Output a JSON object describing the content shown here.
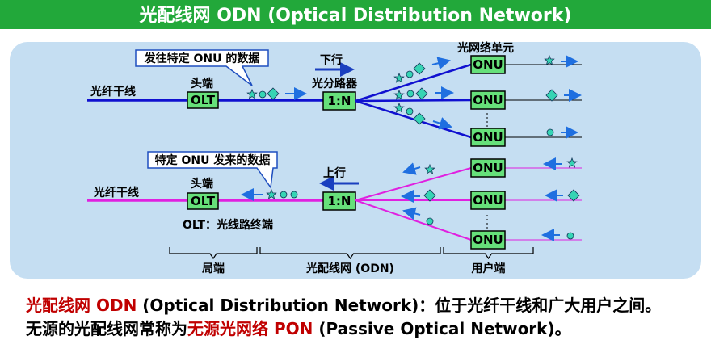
{
  "header": {
    "title": "光配线网 ODN (Optical Distribution Network)"
  },
  "diagram": {
    "downstream": {
      "callout": "发往特定 ONU 的数据",
      "direction": "下行",
      "trunk": "光纤干线",
      "head_end": "头端",
      "olt": "OLT",
      "splitter_label": "光分路器",
      "splitter": "1:N",
      "onu_label": "光网络单元",
      "onus": [
        "ONU",
        "ONU",
        "ONU"
      ]
    },
    "upstream": {
      "callout": "特定 ONU 发来的数据",
      "direction": "上行",
      "trunk": "光纤干线",
      "head_end": "头端",
      "olt": "OLT",
      "splitter": "1:N",
      "onus": [
        "ONU",
        "ONU",
        "ONU"
      ],
      "olt_note": "OLT：光线路终端"
    },
    "segments": [
      "局端",
      "光配线网 (ODN)",
      "用户端"
    ]
  },
  "footer": {
    "lines": [
      [
        "光配线网 ODN",
        " (Optical Distribution Network)：位于光纤干线和广大用户之间。"
      ],
      [
        "无源的光配线网常称为",
        "无源光网络 PON",
        " (Passive Optical Network)。"
      ]
    ]
  }
}
